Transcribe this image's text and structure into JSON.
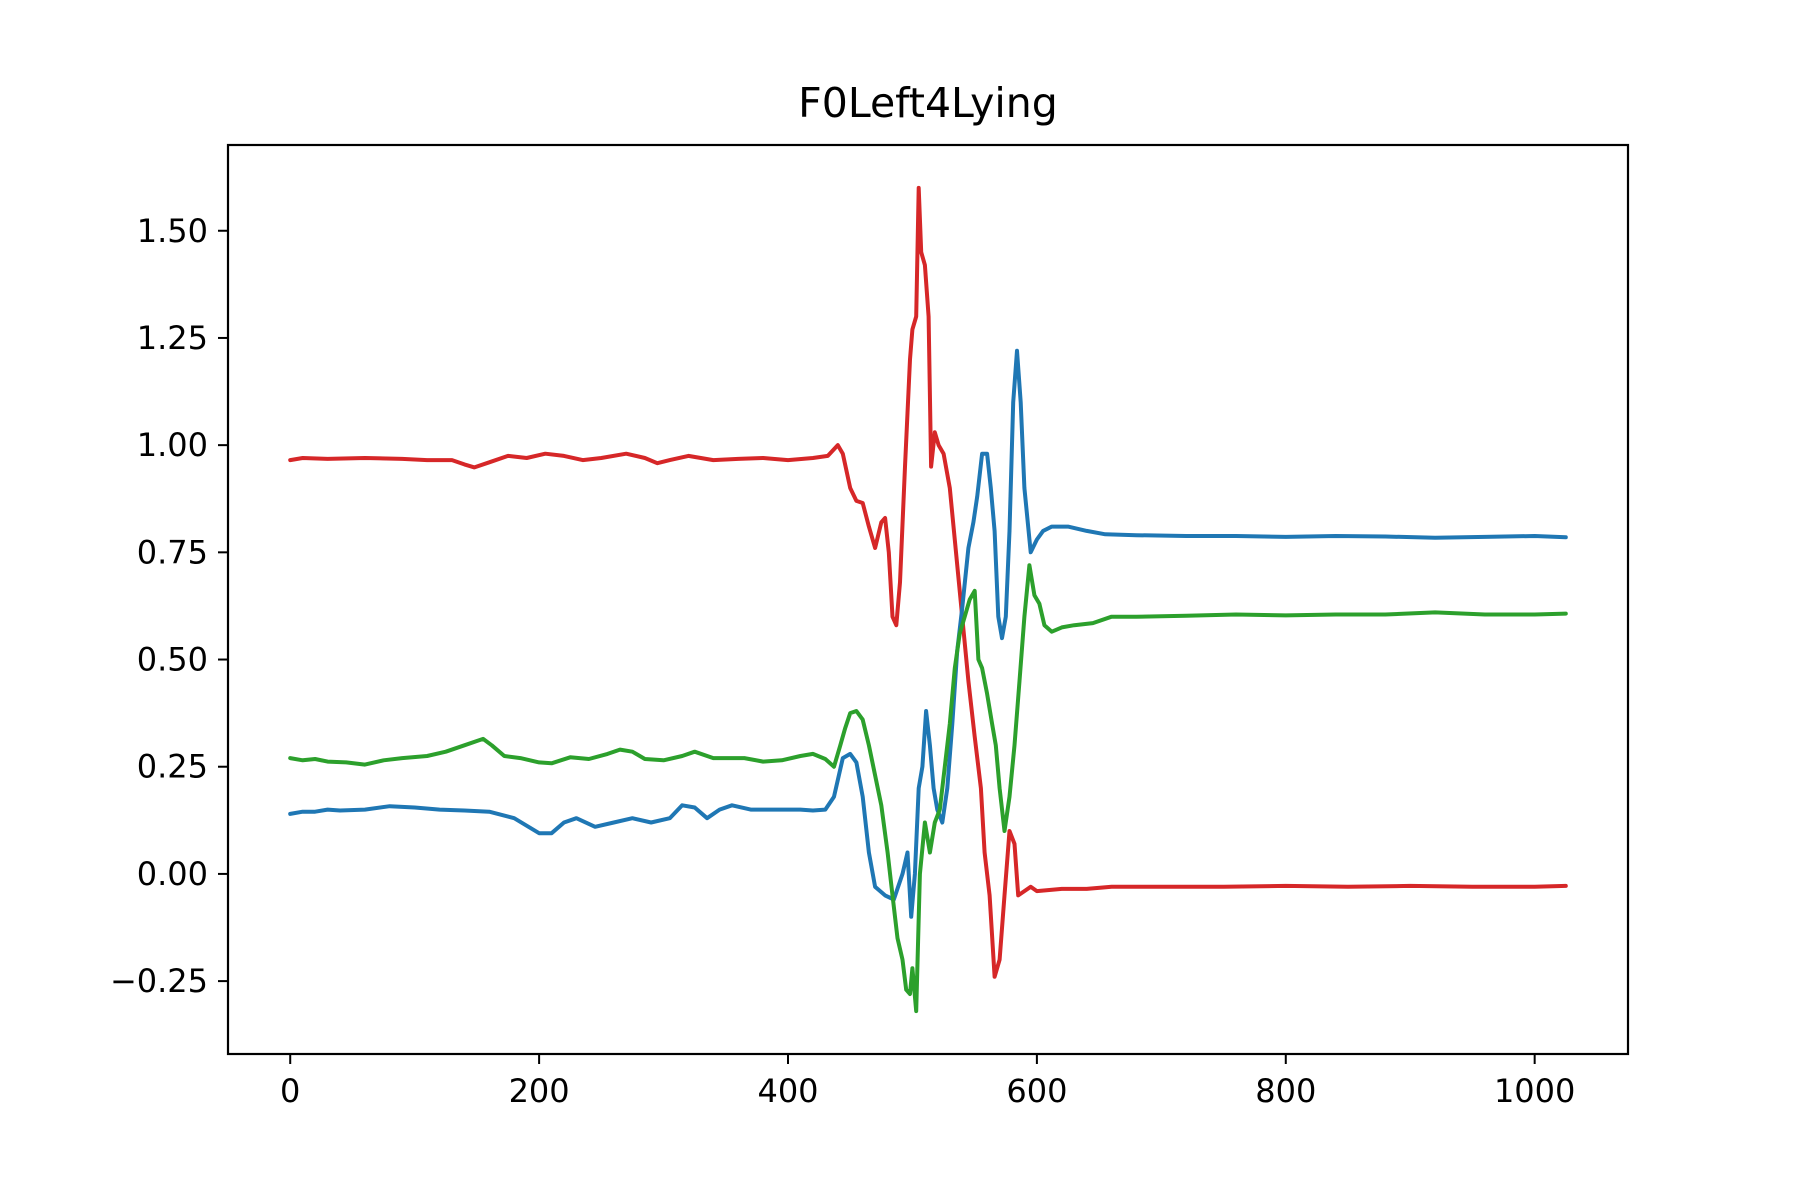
{
  "chart_data": {
    "type": "line",
    "title": "F0Left4Lying",
    "xlabel": "",
    "ylabel": "",
    "xlim": [
      -50,
      1075
    ],
    "ylim": [
      -0.42,
      1.7
    ],
    "xticks": [
      0,
      200,
      400,
      600,
      800,
      1000
    ],
    "xtick_labels": [
      "0",
      "200",
      "400",
      "600",
      "800",
      "1000"
    ],
    "yticks": [
      -0.25,
      0.0,
      0.25,
      0.5,
      0.75,
      1.0,
      1.25,
      1.5
    ],
    "ytick_labels": [
      "−0.25",
      "0.00",
      "0.25",
      "0.50",
      "0.75",
      "1.00",
      "1.25",
      "1.50"
    ],
    "grid": false,
    "legend": false,
    "series": [
      {
        "color": "#d62728",
        "points": [
          [
            0,
            0.965
          ],
          [
            10,
            0.97
          ],
          [
            30,
            0.968
          ],
          [
            60,
            0.97
          ],
          [
            90,
            0.968
          ],
          [
            110,
            0.965
          ],
          [
            130,
            0.965
          ],
          [
            140,
            0.955
          ],
          [
            148,
            0.948
          ],
          [
            160,
            0.96
          ],
          [
            175,
            0.975
          ],
          [
            190,
            0.97
          ],
          [
            205,
            0.98
          ],
          [
            220,
            0.975
          ],
          [
            235,
            0.965
          ],
          [
            250,
            0.97
          ],
          [
            270,
            0.98
          ],
          [
            285,
            0.97
          ],
          [
            295,
            0.958
          ],
          [
            305,
            0.965
          ],
          [
            320,
            0.975
          ],
          [
            340,
            0.965
          ],
          [
            360,
            0.968
          ],
          [
            380,
            0.97
          ],
          [
            400,
            0.965
          ],
          [
            420,
            0.97
          ],
          [
            432,
            0.975
          ],
          [
            440,
            1.0
          ],
          [
            444,
            0.98
          ],
          [
            450,
            0.9
          ],
          [
            455,
            0.87
          ],
          [
            460,
            0.865
          ],
          [
            465,
            0.81
          ],
          [
            470,
            0.76
          ],
          [
            475,
            0.82
          ],
          [
            478,
            0.83
          ],
          [
            481,
            0.75
          ],
          [
            484,
            0.6
          ],
          [
            487,
            0.58
          ],
          [
            490,
            0.68
          ],
          [
            494,
            0.95
          ],
          [
            498,
            1.2
          ],
          [
            500,
            1.27
          ],
          [
            503,
            1.3
          ],
          [
            505,
            1.6
          ],
          [
            507,
            1.45
          ],
          [
            510,
            1.42
          ],
          [
            513,
            1.3
          ],
          [
            515,
            0.95
          ],
          [
            518,
            1.03
          ],
          [
            521,
            1.0
          ],
          [
            525,
            0.98
          ],
          [
            530,
            0.9
          ],
          [
            535,
            0.75
          ],
          [
            540,
            0.6
          ],
          [
            545,
            0.45
          ],
          [
            550,
            0.32
          ],
          [
            555,
            0.2
          ],
          [
            558,
            0.05
          ],
          [
            562,
            -0.05
          ],
          [
            566,
            -0.24
          ],
          [
            570,
            -0.2
          ],
          [
            574,
            -0.05
          ],
          [
            578,
            0.1
          ],
          [
            582,
            0.07
          ],
          [
            585,
            -0.05
          ],
          [
            590,
            -0.04
          ],
          [
            595,
            -0.03
          ],
          [
            600,
            -0.04
          ],
          [
            620,
            -0.035
          ],
          [
            640,
            -0.035
          ],
          [
            660,
            -0.03
          ],
          [
            700,
            -0.03
          ],
          [
            750,
            -0.03
          ],
          [
            800,
            -0.028
          ],
          [
            850,
            -0.03
          ],
          [
            900,
            -0.028
          ],
          [
            950,
            -0.03
          ],
          [
            1000,
            -0.03
          ],
          [
            1025,
            -0.028
          ]
        ]
      },
      {
        "color": "#1f77b4",
        "points": [
          [
            0,
            0.14
          ],
          [
            10,
            0.145
          ],
          [
            20,
            0.145
          ],
          [
            30,
            0.15
          ],
          [
            40,
            0.148
          ],
          [
            60,
            0.15
          ],
          [
            80,
            0.158
          ],
          [
            100,
            0.155
          ],
          [
            120,
            0.15
          ],
          [
            140,
            0.148
          ],
          [
            160,
            0.145
          ],
          [
            180,
            0.13
          ],
          [
            200,
            0.095
          ],
          [
            210,
            0.095
          ],
          [
            220,
            0.12
          ],
          [
            230,
            0.13
          ],
          [
            245,
            0.11
          ],
          [
            260,
            0.12
          ],
          [
            275,
            0.13
          ],
          [
            290,
            0.12
          ],
          [
            305,
            0.13
          ],
          [
            315,
            0.16
          ],
          [
            325,
            0.155
          ],
          [
            335,
            0.13
          ],
          [
            345,
            0.15
          ],
          [
            355,
            0.16
          ],
          [
            370,
            0.15
          ],
          [
            390,
            0.15
          ],
          [
            410,
            0.15
          ],
          [
            420,
            0.148
          ],
          [
            430,
            0.15
          ],
          [
            437,
            0.18
          ],
          [
            444,
            0.27
          ],
          [
            450,
            0.28
          ],
          [
            455,
            0.26
          ],
          [
            460,
            0.18
          ],
          [
            465,
            0.05
          ],
          [
            470,
            -0.03
          ],
          [
            478,
            -0.05
          ],
          [
            485,
            -0.06
          ],
          [
            492,
            0.0
          ],
          [
            496,
            0.05
          ],
          [
            499,
            -0.1
          ],
          [
            502,
            0.0
          ],
          [
            505,
            0.2
          ],
          [
            508,
            0.25
          ],
          [
            511,
            0.38
          ],
          [
            514,
            0.3
          ],
          [
            517,
            0.2
          ],
          [
            520,
            0.15
          ],
          [
            524,
            0.12
          ],
          [
            528,
            0.2
          ],
          [
            532,
            0.35
          ],
          [
            536,
            0.52
          ],
          [
            540,
            0.62
          ],
          [
            545,
            0.76
          ],
          [
            549,
            0.82
          ],
          [
            552,
            0.88
          ],
          [
            556,
            0.98
          ],
          [
            560,
            0.98
          ],
          [
            563,
            0.9
          ],
          [
            566,
            0.8
          ],
          [
            569,
            0.6
          ],
          [
            572,
            0.55
          ],
          [
            575,
            0.6
          ],
          [
            578,
            0.8
          ],
          [
            581,
            1.1
          ],
          [
            584,
            1.22
          ],
          [
            587,
            1.1
          ],
          [
            590,
            0.9
          ],
          [
            595,
            0.75
          ],
          [
            600,
            0.78
          ],
          [
            605,
            0.8
          ],
          [
            612,
            0.81
          ],
          [
            625,
            0.81
          ],
          [
            640,
            0.8
          ],
          [
            655,
            0.792
          ],
          [
            680,
            0.79
          ],
          [
            720,
            0.788
          ],
          [
            760,
            0.788
          ],
          [
            800,
            0.786
          ],
          [
            840,
            0.788
          ],
          [
            880,
            0.787
          ],
          [
            920,
            0.784
          ],
          [
            960,
            0.786
          ],
          [
            1000,
            0.788
          ],
          [
            1025,
            0.785
          ]
        ]
      },
      {
        "color": "#2ca02c",
        "points": [
          [
            0,
            0.27
          ],
          [
            10,
            0.265
          ],
          [
            20,
            0.268
          ],
          [
            30,
            0.262
          ],
          [
            45,
            0.26
          ],
          [
            60,
            0.255
          ],
          [
            75,
            0.265
          ],
          [
            90,
            0.27
          ],
          [
            110,
            0.275
          ],
          [
            125,
            0.285
          ],
          [
            140,
            0.3
          ],
          [
            150,
            0.31
          ],
          [
            155,
            0.315
          ],
          [
            162,
            0.3
          ],
          [
            172,
            0.275
          ],
          [
            185,
            0.27
          ],
          [
            200,
            0.26
          ],
          [
            210,
            0.258
          ],
          [
            225,
            0.272
          ],
          [
            240,
            0.268
          ],
          [
            255,
            0.28
          ],
          [
            265,
            0.29
          ],
          [
            275,
            0.285
          ],
          [
            285,
            0.268
          ],
          [
            300,
            0.265
          ],
          [
            315,
            0.275
          ],
          [
            325,
            0.285
          ],
          [
            340,
            0.27
          ],
          [
            350,
            0.27
          ],
          [
            365,
            0.27
          ],
          [
            380,
            0.262
          ],
          [
            395,
            0.265
          ],
          [
            410,
            0.275
          ],
          [
            420,
            0.28
          ],
          [
            430,
            0.268
          ],
          [
            437,
            0.25
          ],
          [
            442,
            0.3
          ],
          [
            446,
            0.34
          ],
          [
            450,
            0.375
          ],
          [
            455,
            0.38
          ],
          [
            460,
            0.36
          ],
          [
            465,
            0.3
          ],
          [
            470,
            0.23
          ],
          [
            475,
            0.16
          ],
          [
            480,
            0.05
          ],
          [
            484,
            -0.05
          ],
          [
            488,
            -0.15
          ],
          [
            492,
            -0.2
          ],
          [
            495,
            -0.27
          ],
          [
            498,
            -0.28
          ],
          [
            500,
            -0.22
          ],
          [
            503,
            -0.32
          ],
          [
            506,
            0.0
          ],
          [
            510,
            0.12
          ],
          [
            514,
            0.05
          ],
          [
            518,
            0.12
          ],
          [
            522,
            0.15
          ],
          [
            526,
            0.25
          ],
          [
            530,
            0.35
          ],
          [
            534,
            0.48
          ],
          [
            538,
            0.56
          ],
          [
            542,
            0.6
          ],
          [
            546,
            0.64
          ],
          [
            550,
            0.66
          ],
          [
            553,
            0.5
          ],
          [
            556,
            0.48
          ],
          [
            560,
            0.42
          ],
          [
            564,
            0.35
          ],
          [
            567,
            0.3
          ],
          [
            570,
            0.2
          ],
          [
            574,
            0.1
          ],
          [
            578,
            0.18
          ],
          [
            582,
            0.3
          ],
          [
            586,
            0.45
          ],
          [
            590,
            0.6
          ],
          [
            594,
            0.72
          ],
          [
            598,
            0.65
          ],
          [
            602,
            0.63
          ],
          [
            606,
            0.58
          ],
          [
            612,
            0.565
          ],
          [
            620,
            0.575
          ],
          [
            630,
            0.58
          ],
          [
            645,
            0.585
          ],
          [
            660,
            0.6
          ],
          [
            680,
            0.6
          ],
          [
            720,
            0.602
          ],
          [
            760,
            0.605
          ],
          [
            800,
            0.603
          ],
          [
            840,
            0.605
          ],
          [
            880,
            0.605
          ],
          [
            920,
            0.61
          ],
          [
            960,
            0.605
          ],
          [
            1000,
            0.605
          ],
          [
            1025,
            0.607
          ]
        ]
      }
    ]
  }
}
